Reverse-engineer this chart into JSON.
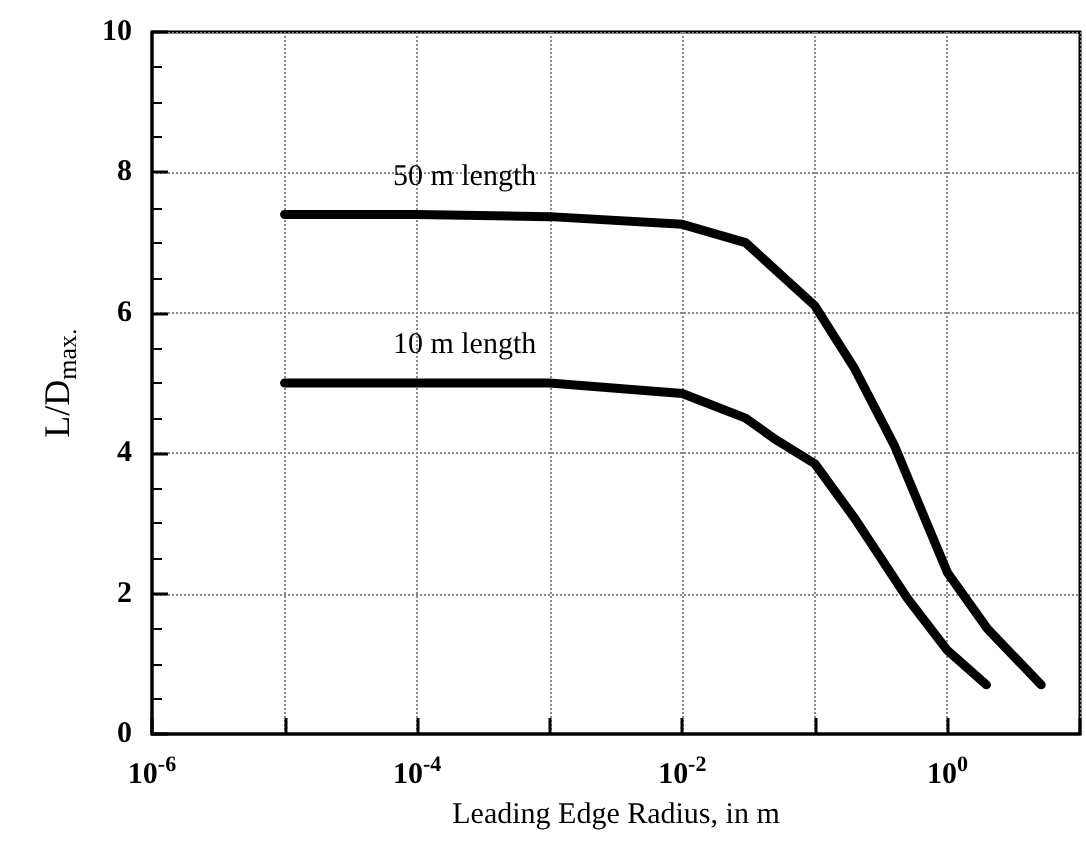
{
  "chart_data": {
    "type": "line",
    "xlabel": "Leading Edge Radius, in m",
    "ylabel": "L/D$_{max.}$",
    "log": "x",
    "grid": true,
    "xlim": [
      1e-06,
      10
    ],
    "xticks": [
      {
        "value": 1e-06,
        "label": "10$^{-6}$"
      },
      {
        "value": 1e-05,
        "label": null
      },
      {
        "value": 0.0001,
        "label": "10$^{-4}$"
      },
      {
        "value": 0.001,
        "label": null
      },
      {
        "value": 0.01,
        "label": "10$^{-2}$"
      },
      {
        "value": 0.1,
        "label": null
      },
      {
        "value": 1,
        "label": "10$^{0}$"
      },
      {
        "value": 10,
        "label": null
      }
    ],
    "ylim": [
      0,
      10
    ],
    "yticks": [
      0,
      2,
      4,
      6,
      8,
      10
    ],
    "series": [
      {
        "name": "50 m length",
        "color": "#000000",
        "x": [
          1e-05,
          0.0001,
          0.001,
          0.01,
          0.03,
          0.1,
          0.2,
          0.4,
          0.7,
          1,
          2,
          5.1
        ],
        "values": [
          7.4,
          7.4,
          7.37,
          7.26,
          7.0,
          6.1,
          5.2,
          4.1,
          3.0,
          2.3,
          1.5,
          0.7
        ]
      },
      {
        "name": "10 m length",
        "color": "#000000",
        "x": [
          1e-05,
          0.0001,
          0.001,
          0.01,
          0.03,
          0.05,
          0.1,
          0.2,
          0.5,
          1,
          1.97
        ],
        "values": [
          5.0,
          5.0,
          5.0,
          4.85,
          4.5,
          4.2,
          3.85,
          3.07,
          1.93,
          1.19,
          0.7
        ]
      }
    ]
  }
}
